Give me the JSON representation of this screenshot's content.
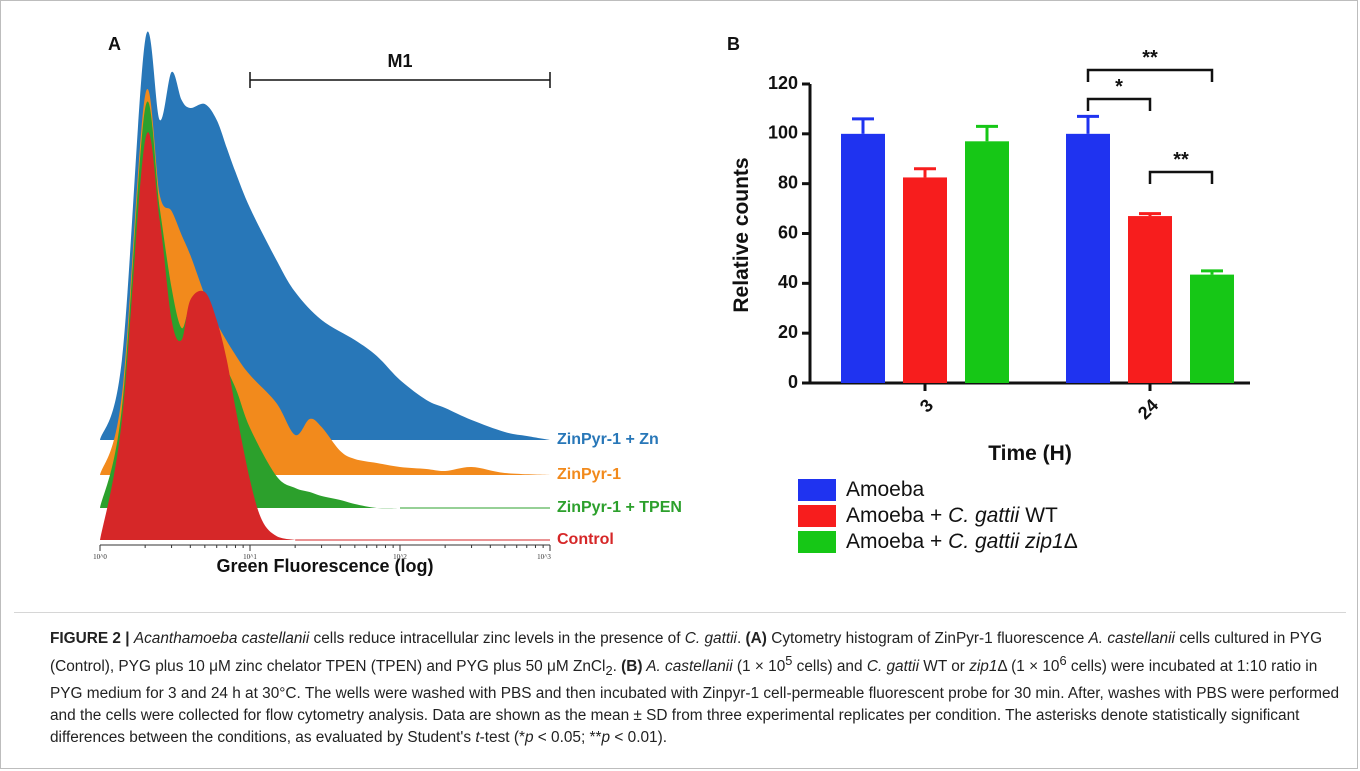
{
  "figure": {
    "panel_a_label": "A",
    "panel_b_label": "B"
  },
  "chart_data": [
    {
      "type": "area",
      "panel": "A",
      "xlabel": "Green Fluorescence (log)",
      "ylabel": "",
      "x_scale": "log",
      "xlim": [
        1,
        1000
      ],
      "x_tick_labels": [
        "10^0",
        "10^1",
        "10^2",
        "10^3"
      ],
      "marker_label": "M1",
      "marker_range": [
        10,
        1000
      ],
      "series": [
        {
          "name": "ZinPyr-1 + Zn",
          "color": "#2877b8",
          "x": [
            1,
            1.4,
            2,
            2.5,
            3,
            3.5,
            4,
            5,
            6,
            7,
            8,
            10,
            15,
            20,
            30,
            50,
            70,
            100,
            150,
            200,
            300,
            500,
            700,
            1000
          ],
          "y": [
            0,
            0.2,
            1.0,
            0.8,
            0.92,
            0.85,
            0.83,
            0.84,
            0.8,
            0.73,
            0.67,
            0.58,
            0.45,
            0.37,
            0.3,
            0.25,
            0.21,
            0.15,
            0.1,
            0.08,
            0.05,
            0.02,
            0.01,
            0
          ]
        },
        {
          "name": "ZinPyr-1",
          "color": "#f28a1c",
          "x": [
            1,
            1.4,
            2,
            2.5,
            3,
            3.5,
            4,
            5,
            6,
            8,
            10,
            15,
            20,
            25,
            30,
            40,
            50,
            70,
            100,
            150,
            200,
            300,
            500,
            1000
          ],
          "y": [
            0,
            0.2,
            0.95,
            0.7,
            0.66,
            0.6,
            0.55,
            0.45,
            0.38,
            0.3,
            0.25,
            0.18,
            0.1,
            0.14,
            0.12,
            0.06,
            0.04,
            0.03,
            0.02,
            0.015,
            0.01,
            0.02,
            0.005,
            0
          ]
        },
        {
          "name": "ZinPyr-1 + TPEN",
          "color": "#2ca02c",
          "x": [
            1,
            1.4,
            2,
            2.5,
            3,
            3.5,
            4,
            5,
            6,
            8,
            10,
            15,
            20,
            25,
            30,
            40,
            50,
            70,
            100
          ],
          "y": [
            0,
            0.25,
            1.0,
            0.75,
            0.55,
            0.45,
            0.5,
            0.47,
            0.4,
            0.3,
            0.2,
            0.08,
            0.05,
            0.04,
            0.03,
            0.02,
            0.01,
            0.0,
            0
          ]
        },
        {
          "name": "Control",
          "color": "#d62728",
          "x": [
            1,
            1.4,
            2,
            2.5,
            3,
            3.5,
            4,
            5,
            6,
            7,
            8,
            10,
            12,
            15,
            20
          ],
          "y": [
            0,
            0.3,
            1.0,
            0.8,
            0.55,
            0.5,
            0.6,
            0.62,
            0.55,
            0.45,
            0.33,
            0.15,
            0.05,
            0.01,
            0
          ]
        }
      ]
    },
    {
      "type": "bar",
      "panel": "B",
      "xlabel": "Time (H)",
      "ylabel": "Relative counts",
      "categories": [
        "3",
        "24"
      ],
      "ylim": [
        0,
        120
      ],
      "y_ticks": [
        "0",
        "20",
        "40",
        "60",
        "80",
        "100",
        "120"
      ],
      "series": [
        {
          "name": "Amoeba",
          "color": "#1f33f0",
          "values": [
            100,
            100
          ],
          "errors": [
            6,
            7
          ]
        },
        {
          "name": "Amoeba + C. gattii WT",
          "color": "#f71d1d",
          "values": [
            82.5,
            67
          ],
          "errors": [
            3.5,
            1
          ]
        },
        {
          "name": "Amoeba + C. gattii zip1Δ",
          "color": "#16c716",
          "values": [
            97,
            43.5
          ],
          "errors": [
            6,
            1.5
          ]
        }
      ],
      "legend_items": [
        {
          "label_prefix": "Amoeba",
          "label_italic": "",
          "label_suffix": ""
        },
        {
          "label_prefix": "Amoeba + ",
          "label_italic": "C. gattii",
          "label_suffix": " WT"
        },
        {
          "label_prefix": "Amoeba + ",
          "label_italic": "C. gattii zip1",
          "label_suffix": "Δ"
        }
      ],
      "significance": [
        {
          "label": "**",
          "between": [
            "24: Amoeba",
            "24: Amoeba + C. gattii zip1Δ"
          ]
        },
        {
          "label": "*",
          "between": [
            "24: Amoeba",
            "24: Amoeba + C. gattii WT"
          ]
        },
        {
          "label": "**",
          "between": [
            "24: Amoeba + C. gattii WT",
            "24: Amoeba + C. gattii zip1Δ"
          ]
        }
      ],
      "legend_placement": "bottom"
    }
  ],
  "caption": {
    "label": "FIGURE 2 | ",
    "title_italic": "Acanthamoeba castellanii",
    "title_rest": " cells reduce intracellular zinc levels in the presence of ",
    "title_italic2": "C. gattii",
    "title_end": ". ",
    "a_label": "(A)",
    "a_text1": " Cytometry histogram of ZinPyr-1 fluorescence ",
    "a_italic": "A. castellanii",
    "a_text2": " cells cultured in PYG (Control), PYG plus 10 μM zinc chelator TPEN (TPEN) and PYG plus 50 μM ZnCl",
    "a_sub": "2",
    "a_text3": ". ",
    "b_label": "(B)",
    "b_italic1": " A. castellanii",
    "b_text1": " (1 × 10",
    "b_sup1": "5",
    "b_text2": " cells) and ",
    "b_italic2": "C. gattii",
    "b_text3": " WT or ",
    "b_italic3": "zip1",
    "b_text4": "Δ (1 × 10",
    "b_sup2": "6",
    "b_text5": " cells) were incubated at 1:10 ratio in PYG medium for 3 and 24 h at 30°C. The wells were washed with PBS and then incubated with Zinpyr-1 cell-permeable fluorescent probe for 30 min. After, washes with PBS were performed and the cells were collected for flow cytometry analysis. Data are shown as the mean ± SD from three experimental replicates per condition. The asterisks denote statistically significant differences between the conditions, as evaluated by Student's ",
    "b_italic4": "t",
    "b_text6": "-test (*",
    "b_italic5": "p",
    "b_text7": " < 0.05; **",
    "b_italic6": "p",
    "b_text8": " < 0.01)."
  }
}
